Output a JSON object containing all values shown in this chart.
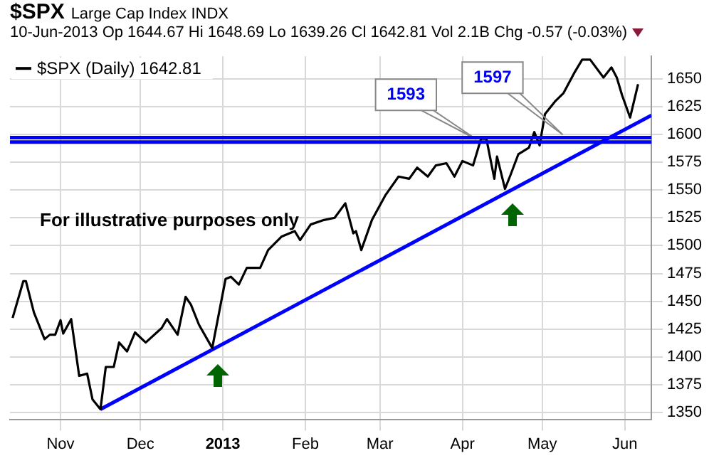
{
  "chart_data": {
    "type": "line",
    "title": "$SPX",
    "subtitle": "Large Cap Index INDX",
    "annotations": [
      "10-Jun-2013 Op 1644.67 Hi 1648.69 Lo 1639.26 Cl 1642.81 Vol 2.1B Chg -0.57 (-0.03%)",
      "For illustrative purposes only"
    ],
    "x": [
      "2012-10-14",
      "2012-10-18",
      "2012-10-19",
      "2012-10-22",
      "2012-10-26",
      "2012-10-28",
      "2012-10-30",
      "2012-11-01",
      "2012-11-02",
      "2012-11-05",
      "2012-11-08",
      "2012-11-11",
      "2012-11-13",
      "2012-11-16",
      "2012-11-18",
      "2012-11-21",
      "2012-11-23",
      "2012-11-26",
      "2012-11-29",
      "2012-12-03",
      "2012-12-09",
      "2012-12-11",
      "2012-12-15",
      "2012-12-18",
      "2012-12-20",
      "2012-12-23",
      "2012-12-28",
      "2013-01-02",
      "2013-01-04",
      "2013-01-07",
      "2013-01-10",
      "2013-01-15",
      "2013-01-18",
      "2013-01-23",
      "2013-01-28",
      "2013-01-30",
      "2013-02-03",
      "2013-02-08",
      "2013-02-12",
      "2013-02-16",
      "2013-02-19",
      "2013-02-20",
      "2013-02-22",
      "2013-02-26",
      "2013-03-03",
      "2013-03-08",
      "2013-03-12",
      "2013-03-15",
      "2013-03-19",
      "2013-03-22",
      "2013-03-26",
      "2013-03-29",
      "2013-04-01",
      "2013-04-05",
      "2013-04-08",
      "2013-04-10",
      "2013-04-13",
      "2013-04-14",
      "2013-04-17",
      "2013-04-19",
      "2013-04-22",
      "2013-04-26",
      "2013-04-28",
      "2013-04-30",
      "2013-05-02",
      "2013-05-06",
      "2013-05-09",
      "2013-05-13",
      "2013-05-16",
      "2013-05-19",
      "2013-05-24",
      "2013-05-27",
      "2013-05-29",
      "2013-05-31",
      "2013-06-03",
      "2013-06-06"
    ],
    "series": [
      {
        "name": "$SPX (Daily) 1642.81",
        "color": "#000000",
        "values": [
          1435,
          1468,
          1468,
          1440,
          1416,
          1420,
          1420,
          1433,
          1421,
          1434,
          1383,
          1385,
          1362,
          1353,
          1391,
          1391,
          1413,
          1405,
          1422,
          1413,
          1426,
          1434,
          1420,
          1454,
          1447,
          1429,
          1408,
          1470,
          1472,
          1465,
          1480,
          1480,
          1496,
          1508,
          1513,
          1505,
          1519,
          1523,
          1525,
          1538,
          1511,
          1513,
          1496,
          1523,
          1545,
          1562,
          1560,
          1570,
          1562,
          1572,
          1574,
          1562,
          1576,
          1572,
          1596,
          1596,
          1560,
          1580,
          1551,
          1563,
          1582,
          1588,
          1602,
          1590,
          1618,
          1630,
          1637,
          1655,
          1667,
          1667,
          1651,
          1660,
          1651,
          1635,
          1615,
          1645
        ]
      },
      {
        "type": "line",
        "color": "#0000ff",
        "x": [
          "2012-11-16",
          "2013-06-11"
        ],
        "values": [
          1353,
          1617
        ]
      }
    ],
    "xlim": [
      "2012-10-13",
      "2013-06-11"
    ],
    "xticks": [
      {
        "value": "2012-11-01",
        "label": "Nov"
      },
      {
        "value": "2012-12-01",
        "label": "Dec"
      },
      {
        "value": "2013-01-01",
        "label": "2013"
      },
      {
        "value": "2013-02-01",
        "label": "Feb"
      },
      {
        "value": "2013-03-01",
        "label": "Mar"
      },
      {
        "value": "2013-04-01",
        "label": "Apr"
      },
      {
        "value": "2013-05-01",
        "label": "May"
      },
      {
        "value": "2013-06-01",
        "label": "Jun"
      }
    ],
    "ylim": [
      1344,
      1670
    ],
    "yticks": [
      1350,
      1375,
      1400,
      1425,
      1450,
      1475,
      1500,
      1525,
      1550,
      1575,
      1600,
      1625,
      1650
    ],
    "ref_lines": [
      {
        "axis": "y",
        "value": 1593,
        "label": "1593",
        "color": "#0000ff"
      },
      {
        "axis": "y",
        "value": 1597,
        "label": "1597",
        "color": "#0000ff"
      }
    ],
    "grid": true,
    "legend": "top left",
    "marker": "none",
    "line_style": "solid"
  }
}
